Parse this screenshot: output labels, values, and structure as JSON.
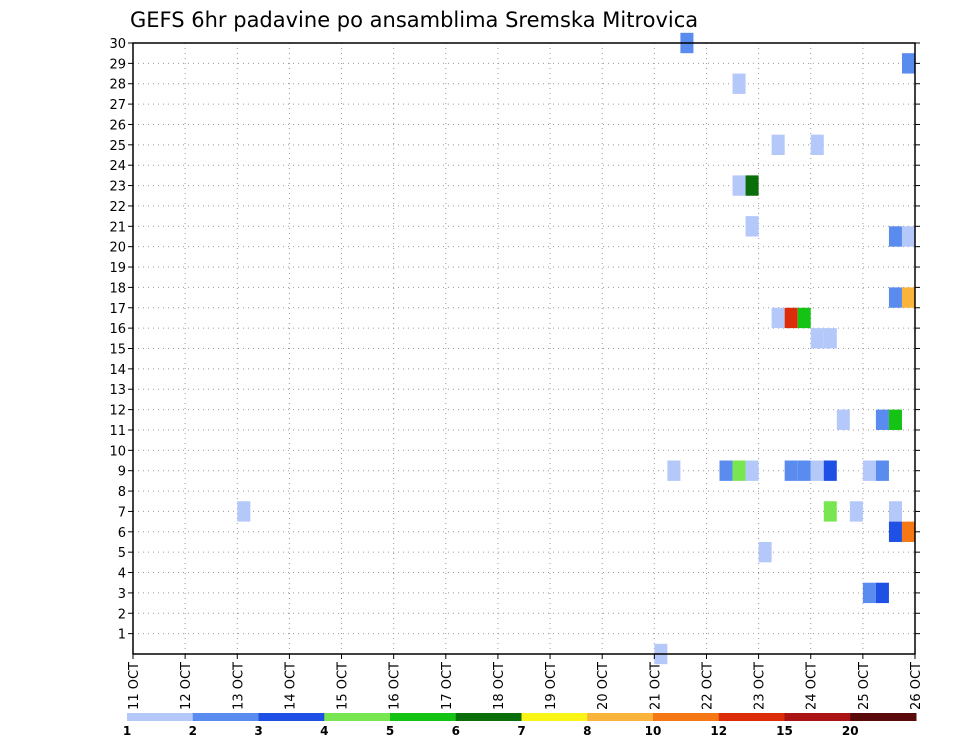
{
  "chart_data": {
    "type": "heatmap",
    "title": "GEFS 6hr padavine po ansamblima Sremska Mitrovica",
    "x_tick_labels": [
      "11 OCT",
      "12 OCT",
      "13 OCT",
      "14 OCT",
      "15 OCT",
      "16 OCT",
      "17 OCT",
      "18 OCT",
      "19 OCT",
      "20 OCT",
      "21 OCT",
      "22 OCT",
      "23 OCT",
      "24 OCT",
      "25 OCT",
      "26 OCT"
    ],
    "y_tick_labels": [
      "1",
      "2",
      "3",
      "4",
      "5",
      "6",
      "7",
      "8",
      "9",
      "10",
      "11",
      "12",
      "13",
      "14",
      "15",
      "16",
      "17",
      "18",
      "19",
      "20",
      "21",
      "22",
      "23",
      "24",
      "25",
      "26",
      "27",
      "28",
      "29",
      "30"
    ],
    "x_range_days": [
      11,
      26
    ],
    "y_range": [
      0,
      30
    ],
    "grid": true,
    "legend_placement": "bottom",
    "legend": {
      "labels": [
        "1",
        "2",
        "3",
        "4",
        "5",
        "6",
        "7",
        "8",
        "10",
        "12",
        "15",
        "20"
      ],
      "colors": [
        "#b4c8fa",
        "#5a8cf0",
        "#1e50e6",
        "#78e650",
        "#14c314",
        "#0a6e0a",
        "#faf514",
        "#fab43c",
        "#f57814",
        "#dc2d0a",
        "#aa1414",
        "#5a0a0a"
      ]
    },
    "cell_days": 0.25,
    "cells": [
      {
        "x": 13.0,
        "y": 7,
        "c": 0
      },
      {
        "x": 21.0,
        "y": 0,
        "c": 0
      },
      {
        "x": 21.5,
        "y": 30,
        "c": 1
      },
      {
        "x": 21.25,
        "y": 9,
        "c": 0
      },
      {
        "x": 22.25,
        "y": 9,
        "c": 1
      },
      {
        "x": 22.5,
        "y": 9,
        "c": 3
      },
      {
        "x": 22.75,
        "y": 9,
        "c": 0
      },
      {
        "x": 22.5,
        "y": 28,
        "c": 0
      },
      {
        "x": 22.5,
        "y": 23,
        "c": 0
      },
      {
        "x": 22.75,
        "y": 23,
        "c": 5
      },
      {
        "x": 22.75,
        "y": 21,
        "c": 0
      },
      {
        "x": 23.0,
        "y": 5,
        "c": 0
      },
      {
        "x": 23.25,
        "y": 25,
        "c": 0
      },
      {
        "x": 23.25,
        "y": 16.5,
        "c": 0
      },
      {
        "x": 23.5,
        "y": 16.5,
        "c": 9
      },
      {
        "x": 23.75,
        "y": 16.5,
        "c": 4
      },
      {
        "x": 23.5,
        "y": 9,
        "c": 1
      },
      {
        "x": 23.75,
        "y": 9,
        "c": 1
      },
      {
        "x": 24.0,
        "y": 25,
        "c": 0
      },
      {
        "x": 24.0,
        "y": 15.5,
        "c": 0
      },
      {
        "x": 24.25,
        "y": 15.5,
        "c": 0
      },
      {
        "x": 24.0,
        "y": 9,
        "c": 0
      },
      {
        "x": 24.25,
        "y": 9,
        "c": 2
      },
      {
        "x": 24.25,
        "y": 7,
        "c": 3
      },
      {
        "x": 24.5,
        "y": 11.5,
        "c": 0
      },
      {
        "x": 24.75,
        "y": 7,
        "c": 0
      },
      {
        "x": 25.0,
        "y": 9,
        "c": 0
      },
      {
        "x": 25.25,
        "y": 9,
        "c": 1
      },
      {
        "x": 25.0,
        "y": 3,
        "c": 1
      },
      {
        "x": 25.25,
        "y": 3,
        "c": 2
      },
      {
        "x": 25.25,
        "y": 11.5,
        "c": 1
      },
      {
        "x": 25.5,
        "y": 11.5,
        "c": 4
      },
      {
        "x": 25.5,
        "y": 7,
        "c": 0
      },
      {
        "x": 25.5,
        "y": 6,
        "c": 2
      },
      {
        "x": 25.75,
        "y": 6,
        "c": 8
      },
      {
        "x": 25.5,
        "y": 17.5,
        "c": 1
      },
      {
        "x": 25.75,
        "y": 17.5,
        "c": 7
      },
      {
        "x": 25.5,
        "y": 20.5,
        "c": 1
      },
      {
        "x": 25.75,
        "y": 20.5,
        "c": 0
      },
      {
        "x": 25.75,
        "y": 29,
        "c": 1
      }
    ]
  }
}
